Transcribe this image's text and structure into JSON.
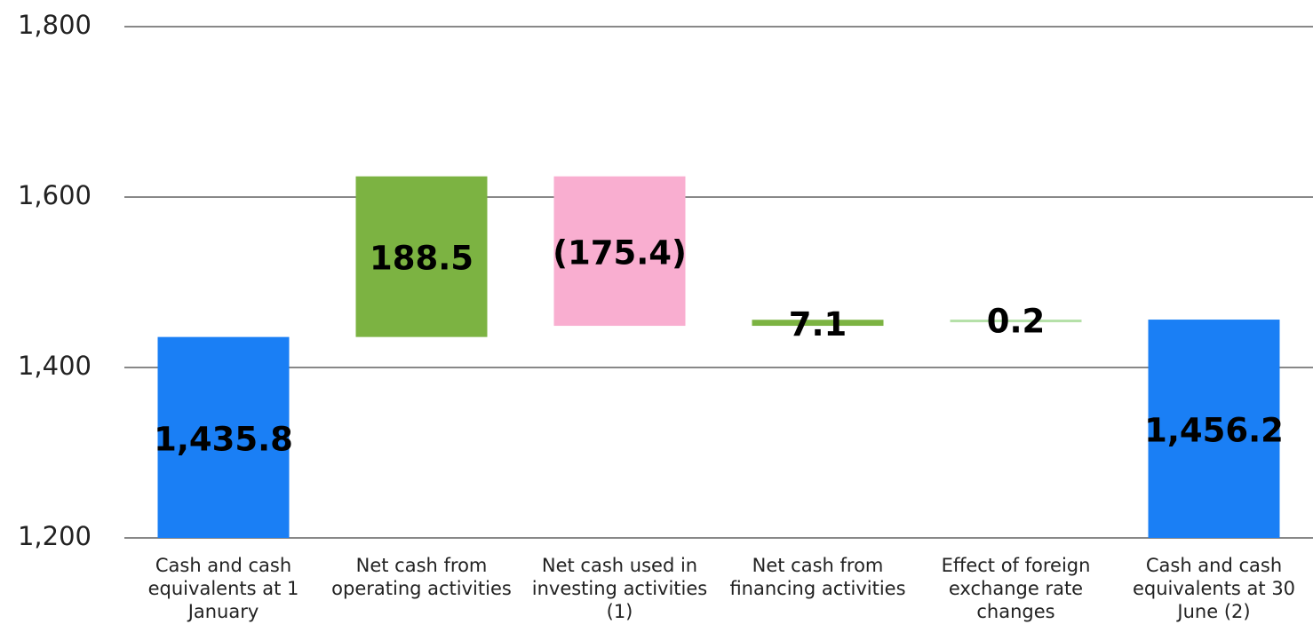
{
  "chart_data": {
    "type": "waterfall",
    "categories": [
      "Cash and cash equivalents at 1 January",
      "Net cash from operating activities",
      "Net cash used in investing activities (1)",
      "Net cash from financing activities",
      "Effect of foreign exchange rate changes",
      "Cash and cash equivalents at 30 June (2)"
    ],
    "values": [
      1435.8,
      188.5,
      -175.4,
      7.1,
      0.2,
      1456.2
    ],
    "value_labels": [
      "1,435.8",
      "188.5",
      "(175.4)",
      "7.1",
      "0.2",
      "1,456.2"
    ],
    "totals": [
      true,
      false,
      false,
      false,
      false,
      true
    ],
    "colors": [
      "#1a7ff5",
      "#7cb342",
      "#f9aed0",
      "#7cb342",
      "#b5e0a8",
      "#1a7ff5"
    ],
    "ylim": [
      1200,
      1800
    ],
    "yticks": [
      {
        "value": 1200,
        "label": "1,200"
      },
      {
        "value": 1400,
        "label": "1,400"
      },
      {
        "value": 1600,
        "label": "1,600"
      },
      {
        "value": 1800,
        "label": "1,800"
      }
    ],
    "grid": true
  }
}
